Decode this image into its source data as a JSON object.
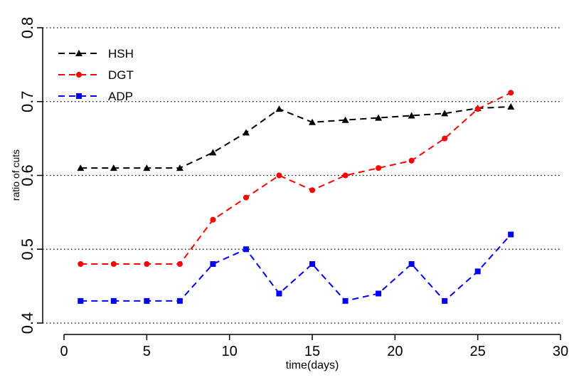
{
  "chart_data": {
    "type": "line",
    "x_label": "time(days)",
    "y_label": "ratio of cuts",
    "x": [
      1,
      3,
      5,
      7,
      9,
      11,
      13,
      15,
      17,
      19,
      21,
      23,
      25,
      27
    ],
    "series": [
      {
        "name": "HSH",
        "color": "#000000",
        "marker": "triangle",
        "values": [
          0.61,
          0.61,
          0.61,
          0.61,
          0.631,
          0.658,
          0.69,
          0.672,
          0.675,
          0.678,
          0.681,
          0.684,
          0.691,
          0.693
        ]
      },
      {
        "name": "DGT",
        "color": "#ff0000",
        "marker": "circle",
        "values": [
          0.48,
          0.48,
          0.48,
          0.48,
          0.54,
          0.57,
          0.6,
          0.58,
          0.6,
          0.61,
          0.62,
          0.65,
          0.69,
          0.712
        ]
      },
      {
        "name": "ADP",
        "color": "#0000ff",
        "marker": "square",
        "values": [
          0.43,
          0.43,
          0.43,
          0.43,
          0.48,
          0.5,
          0.44,
          0.48,
          0.43,
          0.44,
          0.48,
          0.43,
          0.47,
          0.52
        ]
      }
    ],
    "xlim": [
      0,
      30
    ],
    "xticks": [
      0,
      5,
      10,
      15,
      20,
      25,
      30
    ],
    "ylim": [
      0.4,
      0.8
    ],
    "yticks": [
      0.4,
      0.5,
      0.6,
      0.7,
      0.8
    ],
    "grid": true,
    "legend": "top-left"
  }
}
